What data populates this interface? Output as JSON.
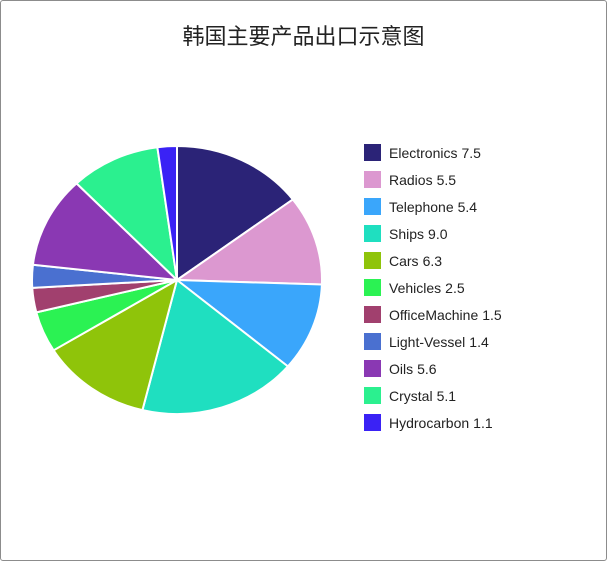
{
  "chart_data": {
    "type": "pie",
    "title": "韩国主要产品出口示意图",
    "legend_position": "right",
    "slices": [
      {
        "label": "Electronics",
        "value": 7.5,
        "color": "#2b2377"
      },
      {
        "label": "Radios",
        "value": 5.5,
        "color": "#dc98d0"
      },
      {
        "label": "Telephone",
        "value": 5.4,
        "color": "#3aa6fb"
      },
      {
        "label": "Ships",
        "value": 9.0,
        "color": "#1fdfc0"
      },
      {
        "label": "Cars",
        "value": 6.3,
        "color": "#8fc40a"
      },
      {
        "label": "Vehicles",
        "value": 2.5,
        "color": "#2bf253"
      },
      {
        "label": "OfficeMachine",
        "value": 1.5,
        "color": "#a1406e"
      },
      {
        "label": "Light-Vessel",
        "value": 1.4,
        "color": "#4a70d0"
      },
      {
        "label": "Oils",
        "value": 5.6,
        "color": "#8a38b3"
      },
      {
        "label": "Crystal",
        "value": 5.1,
        "color": "#2bf08f"
      },
      {
        "label": "Hydrocarbon",
        "value": 1.1,
        "color": "#3a22f5"
      }
    ]
  }
}
